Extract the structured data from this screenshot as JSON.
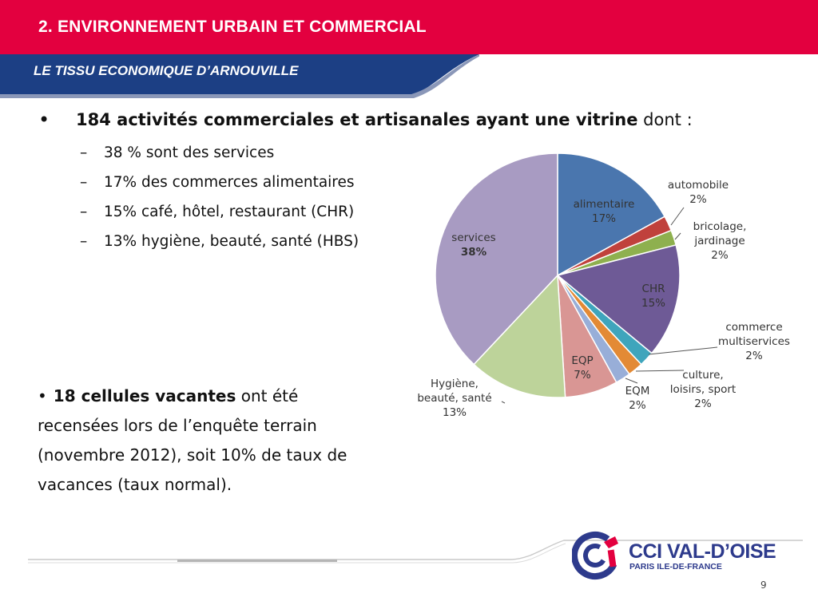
{
  "header": {
    "title": "2. ENVIRONNEMENT URBAIN ET COMMERCIAL",
    "subtitle": "LE TISSU ECONOMIQUE D’ARNOUVILLE",
    "accent_color": "#e3003f",
    "banner_color": "#1c3f84"
  },
  "main_bullet": {
    "bold": "184 activités commerciales et artisanales ayant une vitrine",
    "rest": " dont :"
  },
  "sub_items": [
    "38 % sont des services",
    "17% des commerces alimentaires",
    "15% café, hôtel, restaurant (CHR)",
    "13% hygiène, beauté, santé (HBS)"
  ],
  "paragraph": {
    "bold": "18 cellules vacantes",
    "rest": " ont été recensées lors de l’enquête terrain (novembre 2012), soit 10% de taux de vacances (taux normal)."
  },
  "chart_data": {
    "type": "pie",
    "series": [
      {
        "label": [
          "alimentaire",
          "17%"
        ],
        "value": 17,
        "color": "#4a76ae"
      },
      {
        "label": [
          "automobile",
          "2%"
        ],
        "value": 2,
        "color": "#c0413c"
      },
      {
        "label": [
          "bricolage,",
          "jardinage",
          "2%"
        ],
        "value": 2,
        "color": "#8eb04e"
      },
      {
        "label": [
          "CHR",
          "15%"
        ],
        "value": 15,
        "color": "#6e5a96"
      },
      {
        "label": [
          "commerce",
          "multiservices",
          "2%"
        ],
        "value": 2,
        "color": "#3fa5bc"
      },
      {
        "label": [
          "culture,",
          "loisirs, sport",
          "2%"
        ],
        "value": 2,
        "color": "#e38a35"
      },
      {
        "label": [
          "EQM",
          "2%"
        ],
        "value": 2,
        "color": "#98aed8"
      },
      {
        "label": [
          "EQP",
          "7%"
        ],
        "value": 7,
        "color": "#d99694"
      },
      {
        "label": [
          "Hygiène,",
          "beauté, santé",
          "13%"
        ],
        "value": 13,
        "color": "#bdd39a"
      },
      {
        "label": [
          "services",
          "38%"
        ],
        "value": 38,
        "color": "#a89bc2"
      }
    ]
  },
  "footer": {
    "logo_text": "CCI VAL-D’OISE",
    "logo_subtext": "PARIS ILE-DE-FRANCE",
    "logo_color": "#2d3a8c",
    "logo_accent": "#e3003f",
    "page_number": "9"
  }
}
